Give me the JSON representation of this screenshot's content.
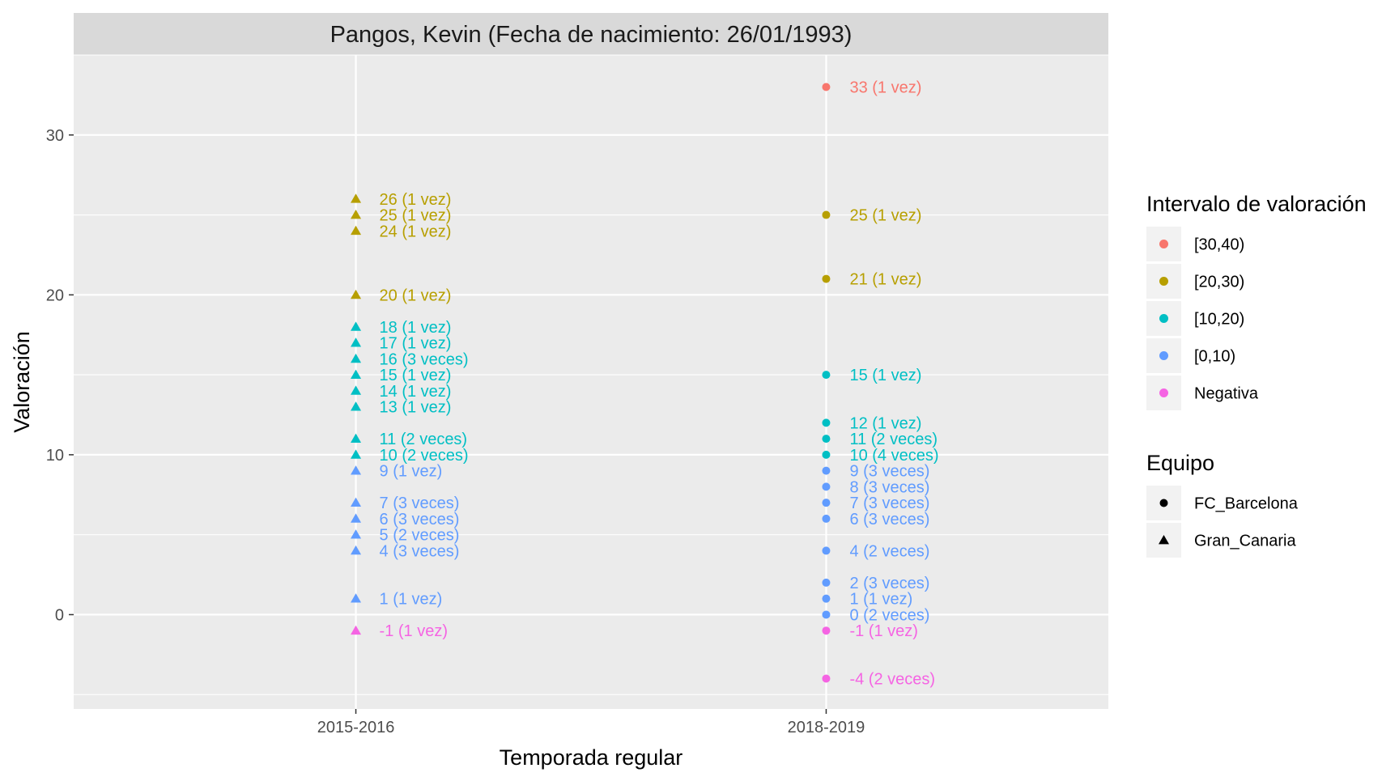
{
  "chart_data": {
    "type": "scatter",
    "title": "Pangos, Kevin (Fecha de nacimiento: 26/01/1993)",
    "xlabel": "Temporada regular",
    "ylabel": "Valoración",
    "categories": [
      "2015-2016",
      "2018-2019"
    ],
    "y_ticks": [
      0,
      10,
      20,
      30
    ],
    "ylim": [
      -5.9,
      35
    ],
    "grid": true,
    "legend_position": "right",
    "colors": {
      "[30,40)": "#F8766D",
      "[20,30)": "#B79F00",
      "[10,20)": "#00BFC4",
      "[0,10)": "#619CFF",
      "Negativa": "#F564E3"
    },
    "legends": [
      {
        "title": "Intervalo de valoración",
        "entries": [
          "[30,40)",
          "[20,30)",
          "[10,20)",
          "[0,10)",
          "Negativa"
        ]
      },
      {
        "title": "Equipo",
        "entries": [
          "FC_Barcelona",
          "Gran_Canaria"
        ]
      }
    ],
    "series": [
      {
        "name": "Gran_Canaria",
        "shape": "triangle",
        "x": "2015-2016",
        "points": [
          {
            "y": 26,
            "label": "26 (1 vez)",
            "interval": "[20,30)"
          },
          {
            "y": 25,
            "label": "25 (1 vez)",
            "interval": "[20,30)"
          },
          {
            "y": 24,
            "label": "24 (1 vez)",
            "interval": "[20,30)"
          },
          {
            "y": 20,
            "label": "20 (1 vez)",
            "interval": "[20,30)"
          },
          {
            "y": 18,
            "label": "18 (1 vez)",
            "interval": "[10,20)"
          },
          {
            "y": 17,
            "label": "17 (1 vez)",
            "interval": "[10,20)"
          },
          {
            "y": 16,
            "label": "16 (3 veces)",
            "interval": "[10,20)"
          },
          {
            "y": 15,
            "label": "15 (1 vez)",
            "interval": "[10,20)"
          },
          {
            "y": 14,
            "label": "14 (1 vez)",
            "interval": "[10,20)"
          },
          {
            "y": 13,
            "label": "13 (1 vez)",
            "interval": "[10,20)"
          },
          {
            "y": 11,
            "label": "11 (2 veces)",
            "interval": "[10,20)"
          },
          {
            "y": 10,
            "label": "10 (2 veces)",
            "interval": "[10,20)"
          },
          {
            "y": 9,
            "label": "9 (1 vez)",
            "interval": "[0,10)"
          },
          {
            "y": 7,
            "label": "7 (3 veces)",
            "interval": "[0,10)"
          },
          {
            "y": 6,
            "label": "6 (3 veces)",
            "interval": "[0,10)"
          },
          {
            "y": 5,
            "label": "5 (2 veces)",
            "interval": "[0,10)"
          },
          {
            "y": 4,
            "label": "4 (3 veces)",
            "interval": "[0,10)"
          },
          {
            "y": 1,
            "label": "1 (1 vez)",
            "interval": "[0,10)"
          },
          {
            "y": -1,
            "label": "-1 (1 vez)",
            "interval": "Negativa"
          }
        ]
      },
      {
        "name": "FC_Barcelona",
        "shape": "circle",
        "x": "2018-2019",
        "points": [
          {
            "y": 33,
            "label": "33 (1 vez)",
            "interval": "[30,40)"
          },
          {
            "y": 25,
            "label": "25 (1 vez)",
            "interval": "[20,30)"
          },
          {
            "y": 21,
            "label": "21 (1 vez)",
            "interval": "[20,30)"
          },
          {
            "y": 15,
            "label": "15 (1 vez)",
            "interval": "[10,20)"
          },
          {
            "y": 12,
            "label": "12 (1 vez)",
            "interval": "[10,20)"
          },
          {
            "y": 11,
            "label": "11 (2 veces)",
            "interval": "[10,20)"
          },
          {
            "y": 10,
            "label": "10 (4 veces)",
            "interval": "[10,20)"
          },
          {
            "y": 9,
            "label": "9 (3 veces)",
            "interval": "[0,10)"
          },
          {
            "y": 8,
            "label": "8 (3 veces)",
            "interval": "[0,10)"
          },
          {
            "y": 7,
            "label": "7 (3 veces)",
            "interval": "[0,10)"
          },
          {
            "y": 6,
            "label": "6 (3 veces)",
            "interval": "[0,10)"
          },
          {
            "y": 4,
            "label": "4 (2 veces)",
            "interval": "[0,10)"
          },
          {
            "y": 2,
            "label": "2 (3 veces)",
            "interval": "[0,10)"
          },
          {
            "y": 1,
            "label": "1 (1 vez)",
            "interval": "[0,10)"
          },
          {
            "y": 0,
            "label": "0 (2 veces)",
            "interval": "[0,10)"
          },
          {
            "y": -1,
            "label": "-1 (1 vez)",
            "interval": "Negativa"
          },
          {
            "y": -4,
            "label": "-4 (2 veces)",
            "interval": "Negativa"
          }
        ]
      }
    ]
  }
}
